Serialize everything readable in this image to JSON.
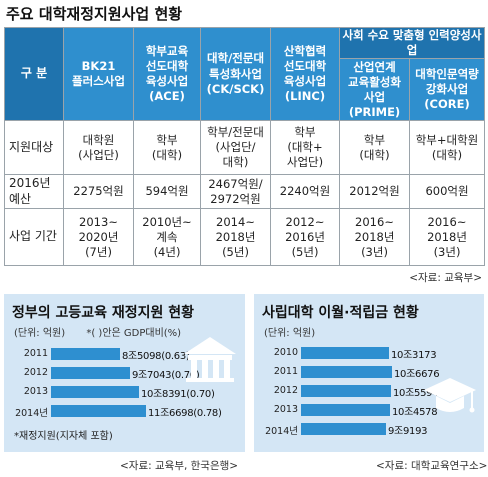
{
  "title": "주요 대학재정지원사업 현황",
  "table": {
    "corner": "구 분",
    "group_header": "사회 수요 맞춤형 인력양성사업",
    "columns": [
      {
        "lines": [
          "BK21",
          "플러스사업"
        ]
      },
      {
        "lines": [
          "학부교육",
          "선도대학",
          "육성사업",
          "(ACE)"
        ]
      },
      {
        "lines": [
          "대학/전문대",
          "특성화사업",
          "(CK/SCK)"
        ]
      },
      {
        "lines": [
          "산학협력",
          "선도대학",
          "육성사업",
          "(LINC)"
        ]
      },
      {
        "lines": [
          "산업연계",
          "교육활성화",
          "사업",
          "(PRIME)"
        ]
      },
      {
        "lines": [
          "대학인문역량",
          "강화사업",
          "(CORE)"
        ]
      }
    ],
    "rows": [
      {
        "label": [
          "지원대상"
        ],
        "cells": [
          [
            "대학원",
            "(사업단)"
          ],
          [
            "학부",
            "(대학)"
          ],
          [
            "학부/전문대",
            "(사업단/",
            "대학)"
          ],
          [
            "학부",
            "(대학+",
            "사업단)"
          ],
          [
            "학부",
            "(대학)"
          ],
          [
            "학부+대학원",
            "(대학)"
          ]
        ]
      },
      {
        "label": [
          "2016년",
          "예산"
        ],
        "cells": [
          [
            "2275억원"
          ],
          [
            "594억원"
          ],
          [
            "2467억원/",
            "2972억원"
          ],
          [
            "2240억원"
          ],
          [
            "2012억원"
          ],
          [
            "600억원"
          ]
        ]
      },
      {
        "label": [
          "사업 기간"
        ],
        "cells": [
          [
            "2013~",
            "2020년",
            "(7년)"
          ],
          [
            "2010년~",
            "계속",
            "(4년)"
          ],
          [
            "2014~",
            "2018년",
            "(5년)"
          ],
          [
            "2012~",
            "2016년",
            "(5년)"
          ],
          [
            "2016~",
            "2018년",
            "(3년)"
          ],
          [
            "2016~",
            "2018년",
            "(3년)"
          ]
        ]
      }
    ],
    "source": "<자료: 교육부>"
  },
  "chart_data": [
    {
      "type": "bar",
      "title": "정부의 고등교육 재정지원 현황",
      "unit": "(단위: 억원)",
      "ratio_note": "*(   )안은 GDP대비(%)",
      "categories": [
        "2011",
        "2012",
        "2013",
        "2014년"
      ],
      "values": [
        85098,
        97043,
        108391,
        116698
      ],
      "labels": [
        "8조5098(0.63)",
        "9조7043(0.70)",
        "10조8391(0.70)",
        "11조6698(0.78)"
      ],
      "gdp_ratio": [
        0.63,
        0.7,
        0.7,
        0.78
      ],
      "footnote": "*재정지원(지자체 포함)",
      "source": "<자료: 교육부, 한국은행>",
      "color": "#2e8fd0"
    },
    {
      "type": "bar",
      "title": "사립대학 이월·적립금 현황",
      "unit": "(단위: 억원)",
      "categories": [
        "2010",
        "2011",
        "2012",
        "2013",
        "2014년"
      ],
      "values": [
        103173,
        106676,
        105594,
        104578,
        99193
      ],
      "labels": [
        "10조3173",
        "10조6676",
        "10조5594",
        "10조4578",
        "9조9193"
      ],
      "source": "<자료: 대학교육연구소>",
      "color": "#2e8fd0"
    }
  ],
  "icons": [
    "building-icon",
    "graduation-cap-icon"
  ]
}
